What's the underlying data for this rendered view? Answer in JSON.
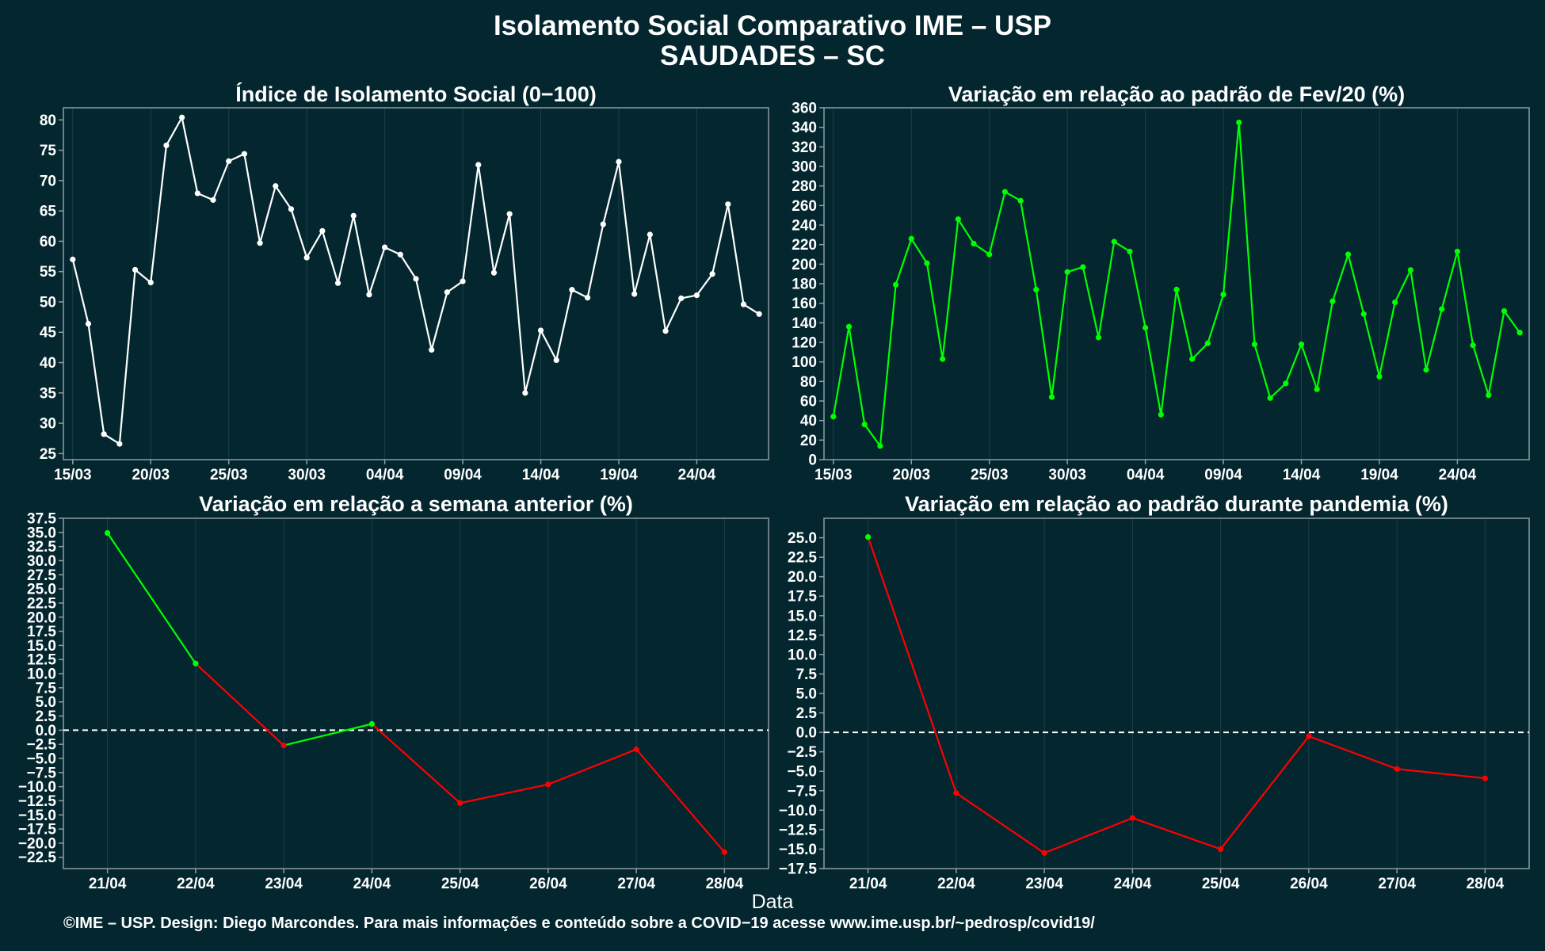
{
  "figure": {
    "title_line1": "Isolamento Social Comparativo IME – USP",
    "title_line2": "SAUDADES – SC",
    "footer": "©IME – USP. Design: Diego Marcondes. Para mais informações e conteúdo sobre a COVID−19 acesse www.ime.usp.br/~pedrosp/covid19/"
  },
  "colors": {
    "background": "#03262f",
    "panel_border": "#8c9ea3",
    "gridline": "#1c4049",
    "white_series": "#ffffff",
    "positive": "#00ff00",
    "negative": "#ff0000"
  },
  "chart_data": [
    {
      "id": "p1",
      "type": "line",
      "title": "Índice de Isolamento Social (0−100)",
      "xlabel": "",
      "ylabel": "",
      "color": "#ffffff",
      "x_tick_labels": [
        "15/03",
        "20/03",
        "25/03",
        "30/03",
        "04/04",
        "09/04",
        "14/04",
        "19/04",
        "24/04"
      ],
      "x_tick_positions": [
        0,
        5,
        10,
        15,
        20,
        25,
        30,
        35,
        40
      ],
      "xlim": [
        -0.6,
        44.6
      ],
      "ylim": [
        24,
        82
      ],
      "y_ticks": [
        25,
        30,
        35,
        40,
        45,
        50,
        55,
        60,
        65,
        70,
        75,
        80
      ],
      "y_tick_labels": [
        "25",
        "30",
        "35",
        "40",
        "45",
        "50",
        "55",
        "60",
        "65",
        "70",
        "75",
        "80"
      ],
      "values": [
        57,
        46.4,
        28.2,
        26.6,
        55.3,
        53.2,
        75.8,
        80.4,
        67.9,
        66.8,
        73.2,
        74.4,
        59.7,
        69.1,
        65.3,
        57.3,
        61.7,
        53.1,
        64.2,
        51.2,
        59,
        57.8,
        53.8,
        42.1,
        51.6,
        53.4,
        72.6,
        54.8,
        64.5,
        35,
        45.3,
        40.4,
        52,
        50.7,
        62.8,
        73.1,
        51.3,
        61.1,
        45.2,
        50.6,
        51.1,
        54.6,
        66.1,
        49.6,
        48
      ]
    },
    {
      "id": "p2",
      "type": "line",
      "title": "Variação em relação ao padrão de Fev/20 (%)",
      "xlabel": "",
      "ylabel": "",
      "color": "#00ff00",
      "x_tick_labels": [
        "15/03",
        "20/03",
        "25/03",
        "30/03",
        "04/04",
        "09/04",
        "14/04",
        "19/04",
        "24/04"
      ],
      "x_tick_positions": [
        0,
        5,
        10,
        15,
        20,
        25,
        30,
        35,
        40
      ],
      "xlim": [
        -0.6,
        44.6
      ],
      "ylim": [
        0,
        360
      ],
      "y_ticks": [
        0,
        20,
        40,
        60,
        80,
        100,
        120,
        140,
        160,
        180,
        200,
        220,
        240,
        260,
        280,
        300,
        320,
        340,
        360
      ],
      "y_tick_labels": [
        "0",
        "20",
        "40",
        "60",
        "80",
        "100",
        "120",
        "140",
        "160",
        "180",
        "200",
        "220",
        "240",
        "260",
        "280",
        "300",
        "320",
        "340",
        "360"
      ],
      "values": [
        44,
        136,
        36,
        14,
        179,
        226,
        201,
        103,
        246,
        221,
        210,
        274,
        265,
        174,
        64,
        192,
        197,
        125,
        223,
        213,
        135,
        46,
        174,
        103,
        119,
        169,
        345,
        118,
        63,
        78,
        118,
        72,
        162,
        210,
        149,
        85,
        161,
        194,
        92,
        154,
        213,
        117,
        66,
        152,
        130
      ]
    },
    {
      "id": "p3",
      "type": "line",
      "title": "Variação em relação a semana anterior (%)",
      "xlabel": "",
      "ylabel": "",
      "color_positive": "#00ff00",
      "color_negative": "#ff0000",
      "categories": [
        "21/04",
        "22/04",
        "23/04",
        "24/04",
        "25/04",
        "26/04",
        "27/04",
        "28/04"
      ],
      "xlim": [
        -0.5,
        7.5
      ],
      "ylim": [
        -24.5,
        37.5
      ],
      "y_ticks": [
        -22.5,
        -20,
        -17.5,
        -15,
        -12.5,
        -10,
        -7.5,
        -5,
        -2.5,
        0,
        2.5,
        5,
        7.5,
        10,
        12.5,
        15,
        17.5,
        20,
        22.5,
        25,
        27.5,
        30,
        32.5,
        35,
        37.5
      ],
      "y_tick_labels": [
        "−22.5",
        "−20.0",
        "−17.5",
        "−15.0",
        "−12.5",
        "−10.0",
        "−7.5",
        "−5.0",
        "−2.5",
        "0.0",
        "2.5",
        "5.0",
        "7.5",
        "10.0",
        "12.5",
        "15.0",
        "17.5",
        "20.0",
        "22.5",
        "25.0",
        "27.5",
        "30.0",
        "32.5",
        "35.0",
        "37.5"
      ],
      "values": [
        34.9,
        11.8,
        -2.7,
        1.1,
        -12.9,
        -9.6,
        -3.4,
        -21.6
      ],
      "segment_colors": [
        "#00ff00",
        "#ff0000",
        "#00ff00",
        "#ff0000",
        "#ff0000",
        "#ff0000",
        "#ff0000"
      ],
      "point_colors": [
        "#00ff00",
        "#00ff00",
        "#ff0000",
        "#00ff00",
        "#ff0000",
        "#ff0000",
        "#ff0000",
        "#ff0000"
      ],
      "reference_line": 0
    },
    {
      "id": "p4",
      "type": "line",
      "title": "Variação em relação ao padrão durante pandemia (%)",
      "xlabel": "Data",
      "ylabel": "",
      "color_positive": "#00ff00",
      "color_negative": "#ff0000",
      "categories": [
        "21/04",
        "22/04",
        "23/04",
        "24/04",
        "25/04",
        "26/04",
        "27/04",
        "28/04"
      ],
      "xlim": [
        -0.5,
        7.5
      ],
      "ylim": [
        -17.5,
        27.5
      ],
      "y_ticks": [
        -17.5,
        -15,
        -12.5,
        -10,
        -7.5,
        -5,
        -2.5,
        0,
        2.5,
        5,
        7.5,
        10,
        12.5,
        15,
        17.5,
        20,
        22.5,
        25
      ],
      "y_tick_labels": [
        "−17.5",
        "−15.0",
        "−12.5",
        "−10.0",
        "−7.5",
        "−5.0",
        "−2.5",
        "0.0",
        "2.5",
        "5.0",
        "7.5",
        "10.0",
        "12.5",
        "15.0",
        "17.5",
        "20.0",
        "22.5",
        "25.0"
      ],
      "values": [
        25.1,
        -7.8,
        -15.5,
        -11,
        -15,
        -0.5,
        -4.7,
        -5.9
      ],
      "segment_colors": [
        "#ff0000",
        "#ff0000",
        "#ff0000",
        "#ff0000",
        "#ff0000",
        "#ff0000",
        "#ff0000"
      ],
      "point_colors": [
        "#00ff00",
        "#ff0000",
        "#ff0000",
        "#ff0000",
        "#ff0000",
        "#ff0000",
        "#ff0000",
        "#ff0000"
      ],
      "reference_line": 0
    }
  ]
}
